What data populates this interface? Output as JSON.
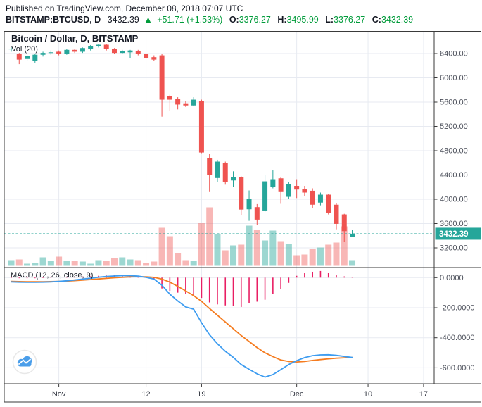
{
  "header": {
    "published": "Published on TradingView.com, December 08, 2018 07:07 UTC",
    "symbol": "BITSTAMP:BTCUSD, D",
    "last_price": "3432.39",
    "direction_icon": "▲",
    "change": "+51.71 (+1.53%)",
    "ohlc": [
      {
        "label": "O:",
        "value": "3376.27"
      },
      {
        "label": "H:",
        "value": "3495.99"
      },
      {
        "label": "L:",
        "value": "3376.27"
      },
      {
        "label": "C:",
        "value": "3432.39"
      }
    ]
  },
  "legend": {
    "symbol_title": "Bitcoin / Dollar, D, BITSTAMP",
    "volume": "Vol (20)",
    "macd": "MACD (12, 26, close, 9)"
  },
  "price_axis": {
    "ticks": [
      {
        "label": "6400.00",
        "value": 6400
      },
      {
        "label": "6000.00",
        "value": 6000
      },
      {
        "label": "5600.00",
        "value": 5600
      },
      {
        "label": "5200.00",
        "value": 5200
      },
      {
        "label": "4800.00",
        "value": 4800
      },
      {
        "label": "4400.00",
        "value": 4400
      },
      {
        "label": "4000.00",
        "value": 4000
      },
      {
        "label": "3600.00",
        "value": 3600
      },
      {
        "label": "3200.00",
        "value": 3200
      }
    ],
    "current_price_label": "3432.39",
    "current_price_value": 3432.39
  },
  "macd_axis": {
    "ticks": [
      {
        "label": "0.0000",
        "value": 0
      },
      {
        "label": "-200.0000",
        "value": -200
      },
      {
        "label": "-400.0000",
        "value": -400
      },
      {
        "label": "-600.0000",
        "value": -600
      }
    ]
  },
  "time_axis": {
    "ticks": [
      {
        "label": "Nov",
        "day": 6
      },
      {
        "label": "12",
        "day": 17
      },
      {
        "label": "19",
        "day": 24
      },
      {
        "label": "Dec",
        "day": 36
      },
      {
        "label": "10",
        "day": 45
      },
      {
        "label": "17",
        "day": 52
      }
    ]
  },
  "chart_data": {
    "type": "candlestick",
    "title": "Bitcoin / Dollar, D, BITSTAMP",
    "panes": [
      "price+volume",
      "macd"
    ],
    "price_range": [
      3200,
      6400
    ],
    "macd_range": [
      -700,
      50
    ],
    "columns": [
      "date",
      "open",
      "high",
      "low",
      "close",
      "volume_px"
    ],
    "candles": [
      [
        "Oct 26",
        6470,
        6500,
        6430,
        6480,
        8
      ],
      [
        "Oct 27",
        6390,
        6410,
        6225,
        6300,
        9
      ],
      [
        "Oct 28",
        6310,
        6380,
        6280,
        6360,
        3
      ],
      [
        "Oct 29",
        6280,
        6390,
        6250,
        6380,
        4
      ],
      [
        "Oct 30",
        6380,
        6430,
        6350,
        6410,
        12
      ],
      [
        "Oct 31",
        6410,
        6450,
        6380,
        6420,
        7
      ],
      [
        "Nov 1",
        6430,
        6450,
        6370,
        6390,
        13
      ],
      [
        "Nov 2",
        6390,
        6470,
        6380,
        6460,
        7
      ],
      [
        "Nov 3",
        6460,
        6480,
        6410,
        6430,
        7
      ],
      [
        "Nov 4",
        6430,
        6500,
        6410,
        6490,
        6
      ],
      [
        "Nov 5",
        6470,
        6540,
        6450,
        6520,
        3
      ],
      [
        "Nov 6",
        6520,
        6560,
        6500,
        6545,
        8
      ],
      [
        "Nov 7",
        6545,
        6560,
        6450,
        6470,
        7
      ],
      [
        "Nov 8",
        6470,
        6490,
        6390,
        6410,
        11
      ],
      [
        "Nov 9",
        6410,
        6460,
        6390,
        6440,
        12
      ],
      [
        "Nov 10",
        6420,
        6460,
        6330,
        6450,
        9
      ],
      [
        "Nov 11",
        6440,
        6460,
        6370,
        6390,
        8
      ],
      [
        "Nov 12",
        6390,
        6400,
        6310,
        6330,
        4
      ],
      [
        "Nov 13",
        6340,
        6370,
        6280,
        6300,
        6
      ],
      [
        "Nov 14",
        6370,
        6390,
        5360,
        5640,
        54
      ],
      [
        "Nov 15",
        5700,
        5720,
        5460,
        5640,
        42
      ],
      [
        "Nov 16",
        5650,
        5680,
        5480,
        5560,
        18
      ],
      [
        "Nov 17",
        5580,
        5620,
        5520,
        5545,
        8
      ],
      [
        "Nov 18",
        5545,
        5680,
        5530,
        5640,
        7
      ],
      [
        "Nov 19",
        5620,
        5640,
        4760,
        4770,
        61
      ],
      [
        "Nov 20",
        4680,
        4750,
        4130,
        4400,
        83
      ],
      [
        "Nov 21",
        4350,
        4650,
        4290,
        4620,
        45
      ],
      [
        "Nov 22",
        4600,
        4620,
        4240,
        4290,
        22
      ],
      [
        "Nov 23",
        4310,
        4460,
        4200,
        4360,
        29
      ],
      [
        "Nov 24",
        4360,
        4380,
        3740,
        3830,
        30
      ],
      [
        "Nov 25",
        3835,
        4145,
        3645,
        4000,
        57
      ],
      [
        "Nov 26",
        3870,
        3920,
        3575,
        3665,
        51
      ],
      [
        "Nov 27",
        3815,
        4405,
        3790,
        4295,
        36
      ],
      [
        "Nov 28",
        4200,
        4475,
        4180,
        4330,
        50
      ],
      [
        "Nov 29",
        4345,
        4370,
        3925,
        4130,
        35
      ],
      [
        "Nov 30",
        4040,
        4290,
        4010,
        4250,
        31
      ],
      [
        "Dec 1",
        4220,
        4330,
        4020,
        4160,
        15
      ],
      [
        "Dec 2",
        4165,
        4220,
        4050,
        4110,
        16
      ],
      [
        "Dec 3",
        4140,
        4180,
        3860,
        3910,
        24
      ],
      [
        "Dec 4",
        3945,
        4110,
        3900,
        4075,
        26
      ],
      [
        "Dec 5",
        4075,
        4090,
        3750,
        3780,
        30
      ],
      [
        "Dec 6",
        3910,
        3940,
        3505,
        3595,
        33
      ],
      [
        "Dec 7",
        3750,
        3760,
        3300,
        3475,
        56
      ],
      [
        "Dec 8",
        3376.27,
        3495.99,
        3376.27,
        3432.39,
        8
      ]
    ],
    "macd": [
      -28,
      -30,
      -31,
      -31,
      -30,
      -28,
      -25,
      -21,
      -16,
      -10,
      -4,
      3,
      8,
      11,
      13,
      13,
      10,
      2,
      -10,
      -50,
      -110,
      -155,
      -195,
      -210,
      -300,
      -380,
      -440,
      -490,
      -530,
      -578,
      -610,
      -640,
      -662,
      -645,
      -612,
      -578,
      -552,
      -532,
      -519,
      -514,
      -513,
      -517,
      -524,
      -531
    ],
    "signal": [
      -25,
      -26,
      -27,
      -27,
      -27,
      -26,
      -25,
      -23,
      -20,
      -17,
      -13,
      -9,
      -5,
      -1,
      2,
      5,
      6,
      5,
      2,
      -10,
      -30,
      -58,
      -88,
      -120,
      -158,
      -205,
      -250,
      -295,
      -340,
      -385,
      -425,
      -465,
      -500,
      -525,
      -548,
      -558,
      -561,
      -558,
      -551,
      -545,
      -540,
      -536,
      -533,
      -531
    ],
    "histogram": [
      -3,
      -4,
      -4,
      -4,
      -3,
      -2,
      0,
      2,
      4,
      7,
      9,
      12,
      14,
      18,
      20,
      16,
      10,
      4,
      -12,
      -72,
      -88,
      -100,
      -108,
      -116,
      -135,
      -165,
      -178,
      -185,
      -190,
      -195,
      -170,
      -160,
      -147,
      -110,
      -75,
      -35,
      12,
      30,
      39,
      44,
      34,
      15,
      8,
      4
    ]
  },
  "colors": {
    "up": "#26a69a",
    "down": "#ef5350",
    "vol_up": "rgba(38,166,154,0.45)",
    "vol_down": "rgba(239,83,80,0.42)",
    "macd_line": "#3d9cf0",
    "signal_line": "#f57c20",
    "histogram": "#e91e63",
    "header_green": "#009b3a",
    "text_dark": "#131722",
    "axis_text": "#4a4e59",
    "grid": "#e7eaf1",
    "frame": "#3a3a3a",
    "current_price_bg": "#26a69a",
    "logo_blue": "#4a9eea"
  },
  "watermark": {
    "name": "tradingview-logo"
  }
}
